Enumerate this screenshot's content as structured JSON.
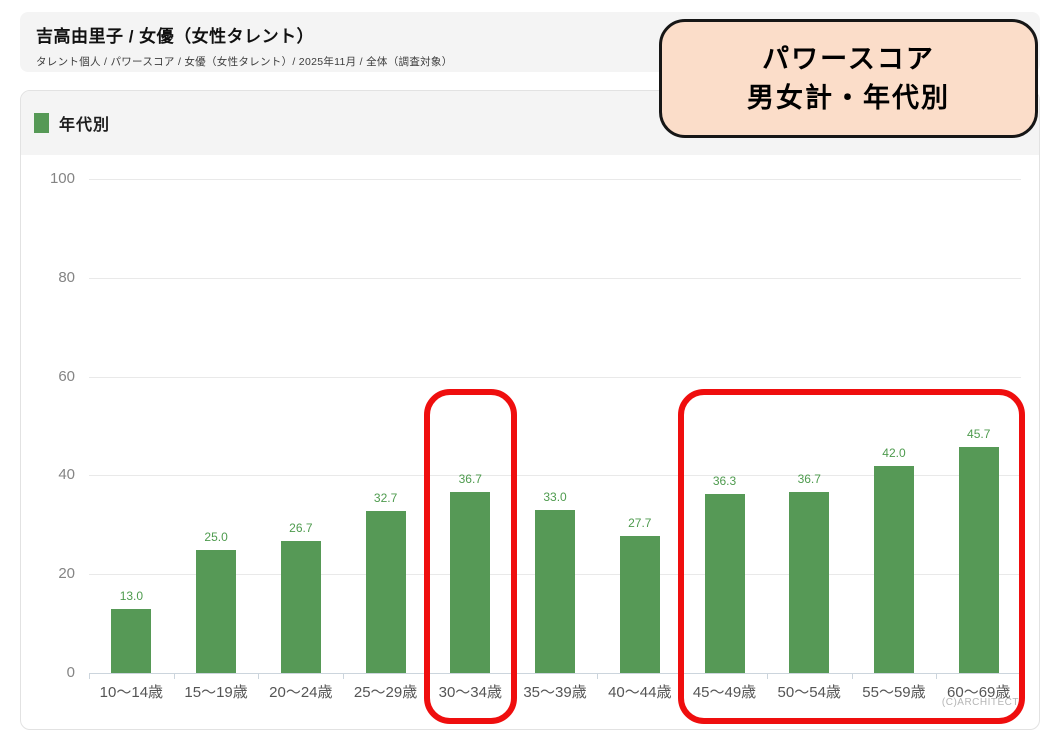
{
  "header": {
    "title": "吉高由里子 / 女優（女性タレント）",
    "breadcrumb": "タレント個人 / パワースコア / 女優（女性タレント）/ 2025年11月 / 全体（調査対象）"
  },
  "badge": {
    "line1": "パワースコア",
    "line2": "男女計・年代別",
    "bg_color": "#fbddc9",
    "border_color": "#161616"
  },
  "legend": {
    "label": "年代別",
    "swatch_color": "#569956"
  },
  "footer": {
    "copyright": "(C)ARCHITECT"
  },
  "chart_data": {
    "type": "bar",
    "title": "年代別",
    "categories": [
      "10〜14歳",
      "15〜19歳",
      "20〜24歳",
      "25〜29歳",
      "30〜34歳",
      "35〜39歳",
      "40〜44歳",
      "45〜49歳",
      "50〜54歳",
      "55〜59歳",
      "60〜69歳"
    ],
    "values": [
      13.0,
      25.0,
      26.7,
      32.7,
      36.7,
      33.0,
      27.7,
      36.3,
      36.7,
      42.0,
      45.7
    ],
    "value_label_decimals": 1,
    "xlabel": "",
    "ylabel": "",
    "ylim": [
      0,
      100
    ],
    "yticks": [
      0,
      20,
      40,
      60,
      80,
      100
    ],
    "grid": true,
    "legend_position": "top-left",
    "bar_color": "#569956",
    "value_label_color": "#4e9b4e",
    "highlight_color": "#ef0e0e",
    "highlights": [
      {
        "from_index": 4,
        "to_index": 4,
        "note": "red rounded rectangle around 30〜34歳"
      },
      {
        "from_index": 7,
        "to_index": 10,
        "note": "red rounded rectangle around 45〜69歳"
      }
    ]
  }
}
